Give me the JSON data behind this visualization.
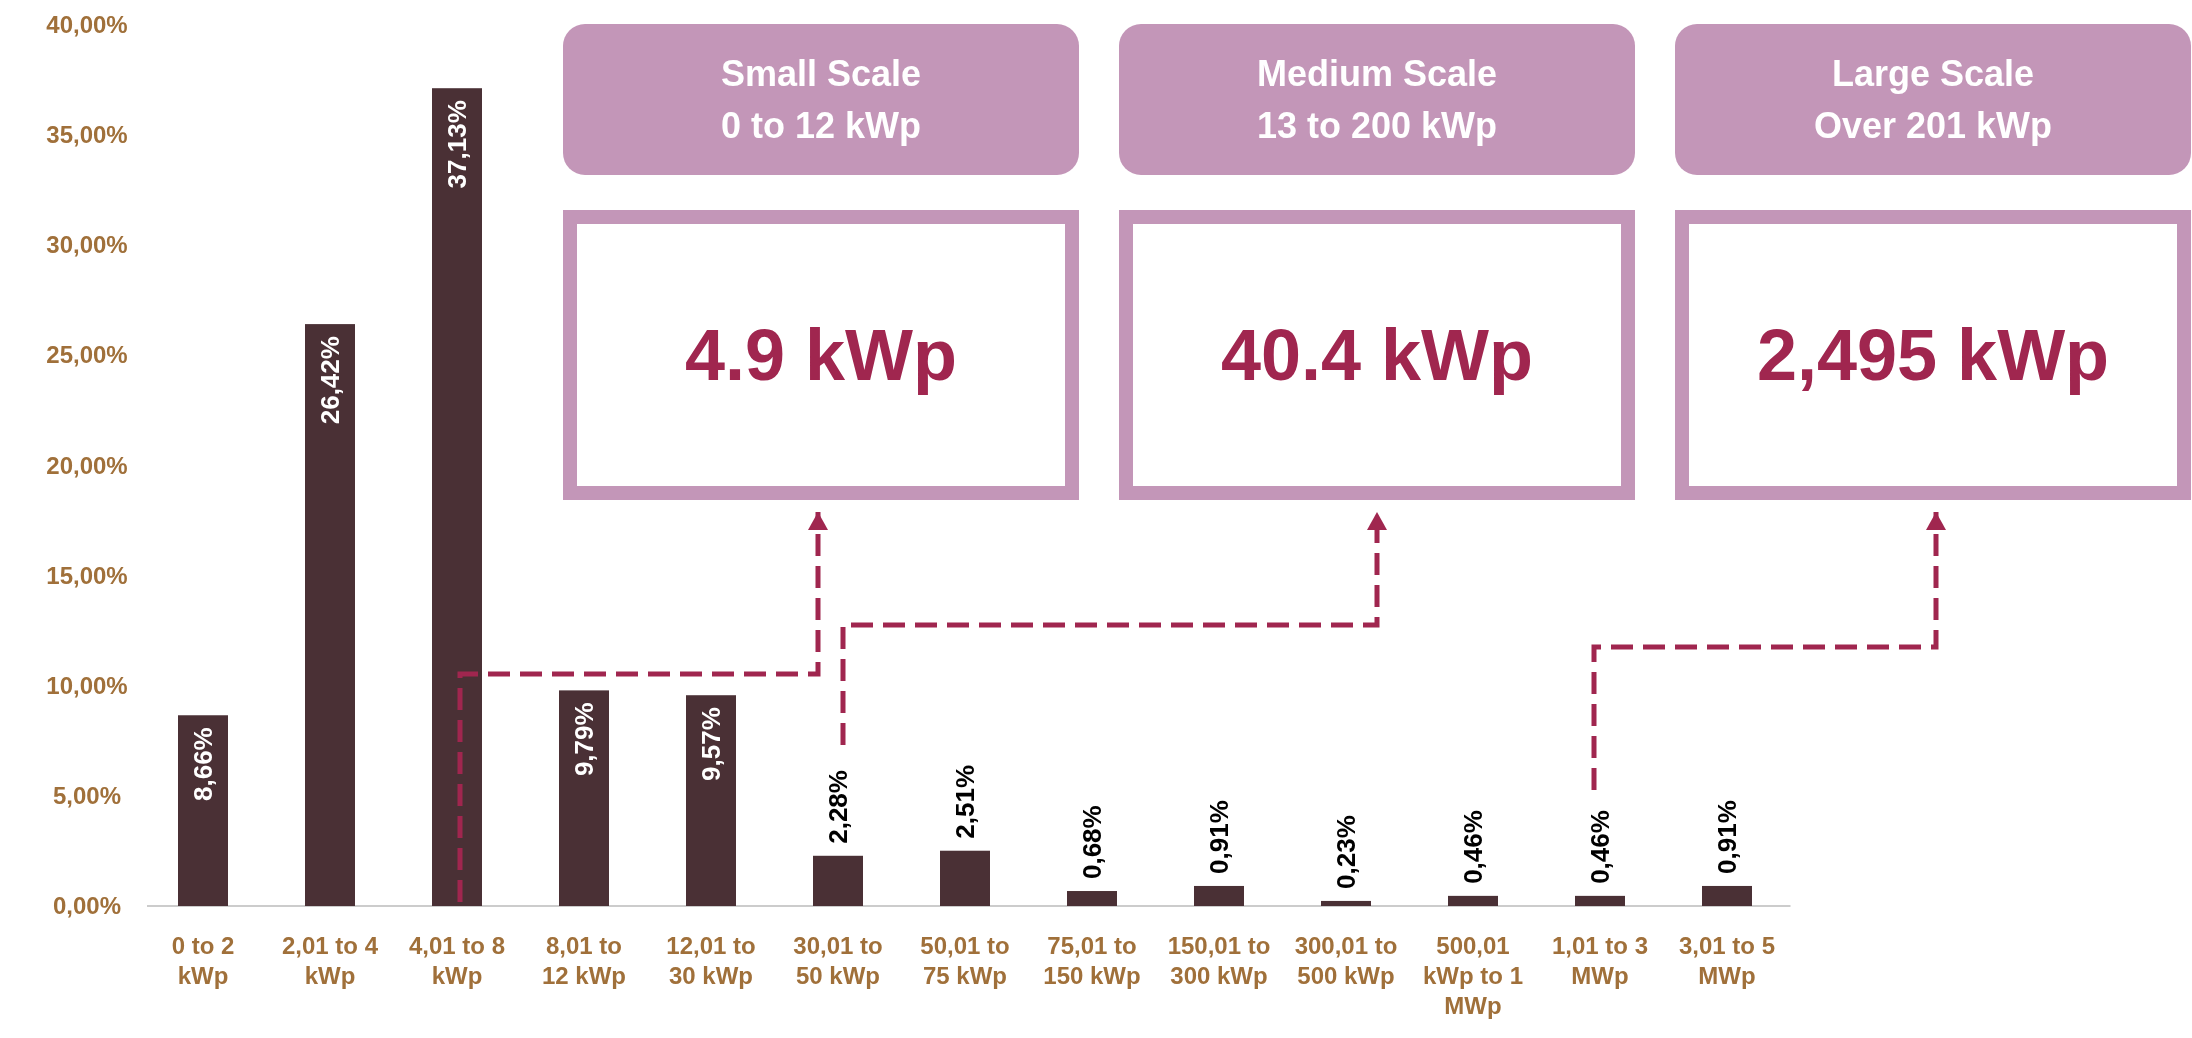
{
  "chart_data": {
    "type": "bar",
    "categories": [
      "0 to 2 kWp",
      "2,01 to 4 kWp",
      "4,01 to 8 kWp",
      "8,01 to 12 kWp",
      "12,01 to 30 kWp",
      "30,01 to 50 kWp",
      "50,01 to 75 kWp",
      "75,01 to 150 kWp",
      "150,01 to 300 kWp",
      "300,01 to 500 kWp",
      "500,01 kWp to 1 MWp",
      "1,01 to 3 MWp",
      "3,01 to 5 MWp"
    ],
    "values": [
      8.66,
      26.42,
      37.13,
      9.79,
      9.57,
      2.28,
      2.51,
      0.68,
      0.91,
      0.23,
      0.46,
      0.46,
      0.91
    ],
    "value_labels": [
      "8,66%",
      "26,42%",
      "37,13%",
      "9,79%",
      "9,57%",
      "2,28%",
      "2,51%",
      "0,68%",
      "0,91%",
      "0,23%",
      "0,46%",
      "0,46%",
      "0,91%"
    ],
    "color": "#4a3035",
    "ylim": [
      0,
      40
    ],
    "yticks": [
      {
        "value": 0,
        "label": "0,00%"
      },
      {
        "value": 5,
        "label": "5,00%"
      },
      {
        "value": 10,
        "label": "10,00%"
      },
      {
        "value": 15,
        "label": "15,00%"
      },
      {
        "value": 20,
        "label": "20,00%"
      },
      {
        "value": 25,
        "label": "25,00%"
      },
      {
        "value": 30,
        "label": "30,00%"
      },
      {
        "value": 35,
        "label": "35,00%"
      },
      {
        "value": 40,
        "label": "40,00%"
      }
    ],
    "grid": false,
    "annotations": [
      "Small Scale",
      "0 to 12 kWp",
      "4.9 kWp",
      "Medium Scale",
      "13 to 200 kWp",
      "40.4 kWp",
      "Large Scale",
      "Over 201 kWp",
      "2,495 kWp"
    ]
  }
}
